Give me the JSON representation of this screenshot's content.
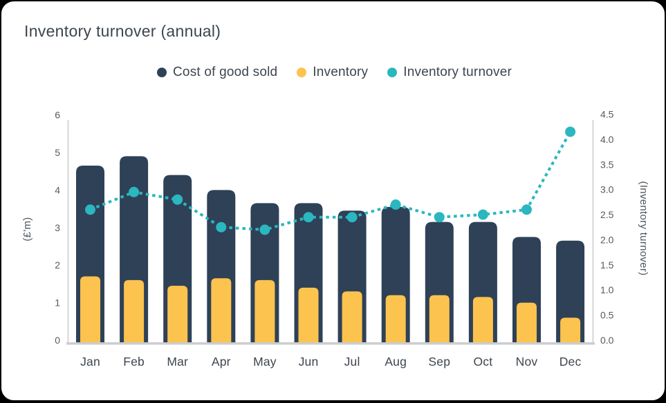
{
  "window": {
    "background": "#000000",
    "card_background": "#ffffff"
  },
  "header": {
    "title": "Inventory turnover (annual)"
  },
  "legend": {
    "items": [
      {
        "label": "Cost of good sold",
        "color": "#2e4157"
      },
      {
        "label": "Inventory",
        "color": "#fcc34f"
      },
      {
        "label": "Inventory turnover",
        "color": "#2bb7bf"
      }
    ]
  },
  "chart_data": {
    "type": "bar",
    "subtype": "combo-bar-line-dual-axis",
    "title": "Inventory turnover (annual)",
    "categories": [
      "Jan",
      "Feb",
      "Mar",
      "Apr",
      "May",
      "Jun",
      "Jul",
      "Aug",
      "Sep",
      "Oct",
      "Nov",
      "Dec"
    ],
    "series": [
      {
        "name": "Cost of good sold",
        "type": "bar",
        "axis": "left",
        "color": "#2e4157",
        "values": [
          4.65,
          4.9,
          4.4,
          4.0,
          3.65,
          3.65,
          3.45,
          3.55,
          3.15,
          3.15,
          2.75,
          2.65
        ]
      },
      {
        "name": "Inventory",
        "type": "bar",
        "axis": "left",
        "color": "#fcc34f",
        "values": [
          1.7,
          1.6,
          1.45,
          1.65,
          1.6,
          1.4,
          1.3,
          1.2,
          1.2,
          1.15,
          1.0,
          0.6
        ]
      },
      {
        "name": "Inventory turnover",
        "type": "line",
        "axis": "right",
        "color": "#2bb7bf",
        "line_style": "dotted",
        "values": [
          2.6,
          2.95,
          2.8,
          2.25,
          2.2,
          2.45,
          2.45,
          2.7,
          2.45,
          2.5,
          2.6,
          4.15
        ]
      }
    ],
    "left_axis": {
      "label": "(£'m)",
      "min": 0,
      "max": 6,
      "ticks": [
        "0",
        "1",
        "2",
        "3",
        "4",
        "5",
        "6"
      ]
    },
    "right_axis": {
      "label": "(Inventory turnover)",
      "min": 0,
      "max": 4.5,
      "ticks": [
        "0.0",
        "0.5",
        "1.0",
        "1.5",
        "2.0",
        "2.5",
        "3.0",
        "3.5",
        "4.0",
        "4.5"
      ]
    },
    "grid": false,
    "legend_position": "top-center",
    "colors": {
      "axis_line": "#d5d5d5",
      "bottom_axis_line": "#cbcdce",
      "tick_text": "#56595e",
      "label_text": "#3d454e"
    }
  }
}
